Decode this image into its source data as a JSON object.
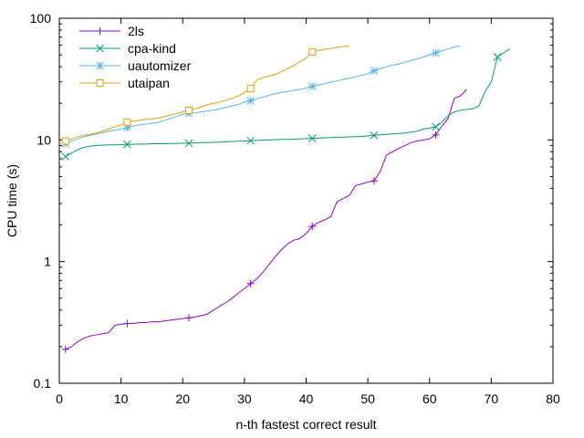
{
  "chart_data": {
    "type": "line",
    "title": "",
    "xlabel": "n-th fastest correct result",
    "ylabel": "CPU time (s)",
    "xlim": [
      0,
      80
    ],
    "ylim": [
      0.1,
      100
    ],
    "yscale": "log",
    "grid": false,
    "legend_position": "top-left",
    "x_ticks": [
      0,
      10,
      20,
      30,
      40,
      50,
      60,
      70,
      80
    ],
    "x_tick_labels": [
      "0",
      "10",
      "20",
      "30",
      "40",
      "50",
      "60",
      "70",
      "80"
    ],
    "y_ticks": [
      0.1,
      1,
      10,
      100
    ],
    "y_tick_labels": [
      "0.1",
      "1",
      "10",
      "100"
    ],
    "series": [
      {
        "name": "2ls",
        "color": "#9400d3",
        "marker": "plus",
        "x": [
          1,
          2,
          3,
          4,
          5,
          6,
          7,
          8,
          9,
          10,
          11,
          12,
          13,
          14,
          15,
          16,
          17,
          18,
          19,
          20,
          21,
          22,
          23,
          24,
          25,
          26,
          27,
          28,
          29,
          30,
          31,
          32,
          33,
          34,
          35,
          36,
          37,
          38,
          39,
          40,
          41,
          42,
          43,
          44,
          45,
          46,
          47,
          48,
          49,
          50,
          51,
          52,
          53,
          54,
          55,
          56,
          57,
          58,
          59,
          60,
          61,
          62,
          63,
          64,
          65,
          66
        ],
        "y": [
          0.19,
          0.2,
          0.22,
          0.235,
          0.245,
          0.25,
          0.255,
          0.26,
          0.3,
          0.305,
          0.31,
          0.31,
          0.315,
          0.315,
          0.32,
          0.32,
          0.325,
          0.33,
          0.335,
          0.34,
          0.345,
          0.35,
          0.36,
          0.37,
          0.4,
          0.43,
          0.46,
          0.5,
          0.55,
          0.6,
          0.66,
          0.72,
          0.82,
          0.95,
          1.1,
          1.25,
          1.4,
          1.5,
          1.55,
          1.7,
          1.95,
          2.1,
          2.2,
          2.35,
          3.1,
          3.3,
          3.5,
          4.2,
          4.35,
          4.5,
          4.6,
          5.5,
          7.5,
          8.0,
          8.5,
          9.0,
          9.5,
          9.8,
          10.0,
          10.2,
          11.0,
          13.0,
          15.0,
          22.0,
          23.0,
          26.0
        ]
      },
      {
        "name": "cpa-kind",
        "color": "#009e73",
        "marker": "x",
        "x": [
          1,
          2,
          3,
          4,
          5,
          6,
          7,
          8,
          9,
          10,
          11,
          12,
          13,
          14,
          15,
          16,
          17,
          18,
          19,
          20,
          21,
          22,
          23,
          24,
          25,
          26,
          27,
          28,
          29,
          30,
          31,
          32,
          33,
          34,
          35,
          36,
          37,
          38,
          39,
          40,
          41,
          42,
          43,
          44,
          45,
          46,
          47,
          48,
          49,
          50,
          51,
          52,
          53,
          54,
          55,
          56,
          57,
          58,
          59,
          60,
          61,
          62,
          63,
          64,
          65,
          66,
          67,
          68,
          69,
          70,
          71,
          72,
          73
        ],
        "y": [
          7.3,
          7.8,
          8.3,
          8.7,
          8.9,
          9.0,
          9.05,
          9.1,
          9.1,
          9.15,
          9.2,
          9.2,
          9.25,
          9.25,
          9.3,
          9.3,
          9.3,
          9.35,
          9.35,
          9.4,
          9.4,
          9.45,
          9.5,
          9.5,
          9.55,
          9.6,
          9.65,
          9.7,
          9.75,
          9.8,
          9.85,
          9.9,
          9.95,
          10.0,
          10.05,
          10.1,
          10.1,
          10.15,
          10.2,
          10.25,
          10.3,
          10.35,
          10.4,
          10.45,
          10.5,
          10.55,
          10.6,
          10.65,
          10.7,
          10.8,
          10.9,
          11.0,
          11.1,
          11.2,
          11.3,
          11.4,
          11.6,
          11.8,
          12.3,
          12.5,
          12.8,
          14.0,
          15.8,
          17.0,
          17.5,
          17.8,
          18.0,
          19.0,
          25.0,
          30.0,
          48.0,
          52.0,
          56.0
        ]
      },
      {
        "name": "uautomizer",
        "color": "#56b4e9",
        "marker": "star",
        "x": [
          1,
          2,
          3,
          4,
          5,
          6,
          7,
          8,
          9,
          10,
          11,
          12,
          13,
          14,
          15,
          16,
          17,
          18,
          19,
          20,
          21,
          22,
          23,
          24,
          25,
          26,
          27,
          28,
          29,
          30,
          31,
          32,
          33,
          34,
          35,
          36,
          37,
          38,
          39,
          40,
          41,
          42,
          43,
          44,
          45,
          46,
          47,
          48,
          49,
          50,
          51,
          52,
          53,
          54,
          55,
          56,
          57,
          58,
          59,
          60,
          61,
          62,
          63,
          64,
          65
        ],
        "y": [
          9.3,
          9.8,
          10.2,
          10.6,
          10.9,
          11.2,
          11.5,
          11.8,
          12.0,
          12.3,
          12.6,
          13.0,
          13.3,
          13.5,
          13.7,
          13.9,
          14.5,
          15.0,
          15.6,
          16.2,
          16.5,
          16.7,
          17.0,
          17.3,
          17.6,
          18.0,
          18.5,
          19.0,
          19.5,
          20.5,
          21.0,
          21.8,
          22.5,
          23.3,
          24.0,
          24.6,
          25.0,
          25.5,
          26.0,
          26.8,
          27.5,
          28.3,
          29.0,
          29.8,
          30.6,
          31.4,
          32.2,
          33.0,
          34.0,
          35.0,
          37.0,
          38.5,
          40.0,
          41.2,
          42.0,
          43.5,
          45.0,
          46.5,
          48.0,
          50.0,
          52.0,
          54.0,
          56.0,
          58.0,
          59.0
        ]
      },
      {
        "name": "utaipan",
        "color": "#e69f00",
        "marker": "square",
        "x": [
          1,
          2,
          3,
          4,
          5,
          6,
          7,
          8,
          9,
          10,
          11,
          12,
          13,
          14,
          15,
          16,
          17,
          18,
          19,
          20,
          21,
          22,
          23,
          24,
          25,
          26,
          27,
          28,
          29,
          30,
          31,
          32,
          33,
          34,
          35,
          36,
          37,
          38,
          39,
          40,
          41,
          42,
          43,
          44,
          45,
          46,
          47
        ],
        "y": [
          9.8,
          10.2,
          10.6,
          10.9,
          11.1,
          11.4,
          11.8,
          12.3,
          12.8,
          13.3,
          14.0,
          14.3,
          14.5,
          14.7,
          14.9,
          15.1,
          15.5,
          16.0,
          16.5,
          17.0,
          17.5,
          18.0,
          18.7,
          19.5,
          20.0,
          20.5,
          21.2,
          22.0,
          23.0,
          24.5,
          26.5,
          31.0,
          32.5,
          33.5,
          34.5,
          36.5,
          38.5,
          41.0,
          44.0,
          47.0,
          53.0,
          54.5,
          55.5,
          56.5,
          57.5,
          58.5,
          59.0
        ]
      }
    ]
  }
}
